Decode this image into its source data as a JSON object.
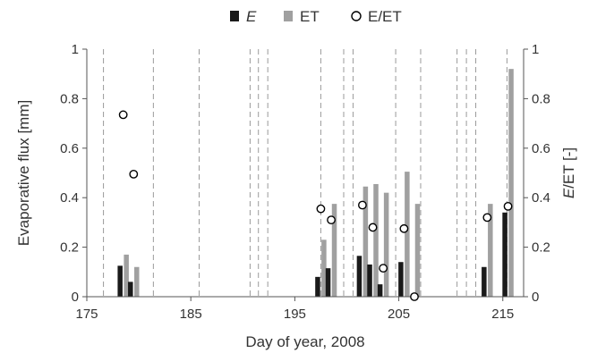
{
  "chart_data": {
    "type": "bar",
    "xlabel": "Day of year, 2008",
    "ylabel_left": "Evaporative flux [mm]",
    "ylabel_right": "E/ET [-]",
    "xlim": [
      175,
      217
    ],
    "ylim": [
      0,
      1
    ],
    "x_ticks": [
      "175",
      "185",
      "195",
      "205",
      "215"
    ],
    "x_tick_values": [
      175,
      185,
      195,
      205,
      215
    ],
    "y_ticks": [
      "0",
      "0.2",
      "0.4",
      "0.6",
      "0.8",
      "1"
    ],
    "y_tick_values": [
      0,
      0.2,
      0.4,
      0.6,
      0.8,
      1
    ],
    "legend": {
      "position": "top-center",
      "items": [
        {
          "label": "E",
          "italic": true,
          "marker": "bar",
          "color": "#1a1a1a"
        },
        {
          "label": "ET",
          "italic": false,
          "marker": "bar",
          "color": "#a0a0a0"
        },
        {
          "label": "E/ET",
          "italic": false,
          "marker": "open-circle",
          "color": "#000000"
        }
      ]
    },
    "dashed_vertical_lines_x": [
      176.6,
      181.4,
      185.8,
      190.7,
      191.5,
      192.4,
      197.5,
      199.7,
      200.6,
      204.7,
      207.1,
      210.6,
      211.5,
      212.4,
      215.4
    ],
    "series": [
      {
        "name": "E",
        "type": "bar",
        "color": "#1a1a1a",
        "x": [
          178.2,
          179.2,
          197.2,
          198.2,
          201.2,
          202.2,
          203.2,
          205.2,
          213.2,
          215.2
        ],
        "values": [
          0.125,
          0.06,
          0.08,
          0.115,
          0.165,
          0.13,
          0.05,
          0.14,
          0.12,
          0.34
        ]
      },
      {
        "name": "ET",
        "type": "bar",
        "color": "#a0a0a0",
        "x": [
          178.8,
          179.8,
          197.8,
          198.8,
          201.8,
          202.8,
          203.8,
          205.8,
          206.8,
          213.8,
          215.8
        ],
        "values": [
          0.17,
          0.12,
          0.23,
          0.375,
          0.445,
          0.455,
          0.42,
          0.505,
          0.375,
          0.375,
          0.92
        ]
      },
      {
        "name": "E/ET",
        "type": "scatter",
        "axis": "right",
        "marker": "open-circle",
        "x": [
          178.5,
          179.5,
          197.5,
          198.5,
          201.5,
          202.5,
          203.5,
          205.5,
          206.5,
          213.5,
          215.5
        ],
        "values": [
          0.735,
          0.495,
          0.355,
          0.31,
          0.37,
          0.28,
          0.115,
          0.275,
          0.0,
          0.32,
          0.365
        ]
      }
    ]
  }
}
